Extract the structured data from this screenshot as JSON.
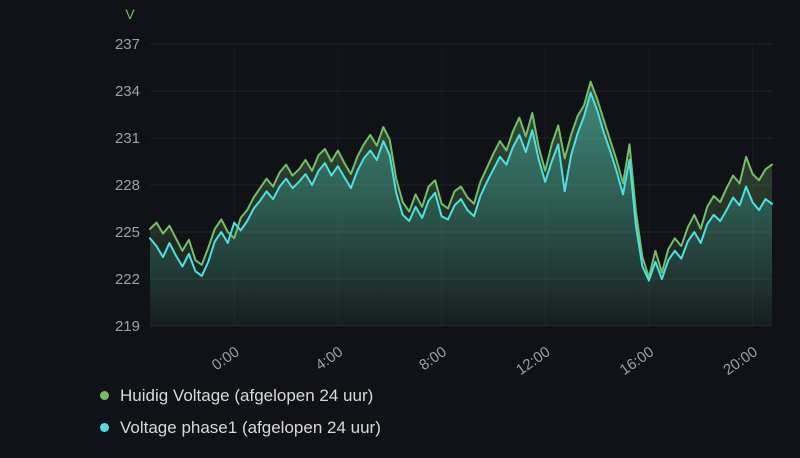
{
  "colors": {
    "background": "#111217",
    "grid": "rgba(255,255,255,0.07)",
    "tick_text": "#9aa0a6",
    "legend_text": "#d8d9da"
  },
  "chart_data": {
    "type": "area",
    "title": "",
    "ylabel": "V",
    "unit_color": "#73bf69",
    "grid": true,
    "legend_position": "bottom-left",
    "ylim": [
      219,
      237
    ],
    "yticks": [
      219,
      222,
      225,
      228,
      231,
      234,
      237
    ],
    "x_span_hours": 24,
    "x_step_hours": 0.25,
    "x_ticks": [
      {
        "hour_offset": 3.25,
        "label": "0:00"
      },
      {
        "hour_offset": 7.25,
        "label": "4:00"
      },
      {
        "hour_offset": 11.25,
        "label": "8:00"
      },
      {
        "hour_offset": 15.25,
        "label": "12:00"
      },
      {
        "hour_offset": 19.25,
        "label": "16:00"
      },
      {
        "hour_offset": 23.25,
        "label": "20:00"
      }
    ],
    "series": [
      {
        "name": "Huidig Voltage (afgelopen 24 uur)",
        "color": "#73bf69",
        "values": [
          225.2,
          225.6,
          224.9,
          225.4,
          224.6,
          223.8,
          224.5,
          223.2,
          222.9,
          224.0,
          225.2,
          225.8,
          225.0,
          224.6,
          225.9,
          226.4,
          227.2,
          227.8,
          228.4,
          227.9,
          228.8,
          229.3,
          228.6,
          229.0,
          229.6,
          228.9,
          229.9,
          230.3,
          229.5,
          230.2,
          229.4,
          228.7,
          229.8,
          230.6,
          231.2,
          230.5,
          231.7,
          230.9,
          228.4,
          226.9,
          226.3,
          227.4,
          226.6,
          227.9,
          228.3,
          226.8,
          226.5,
          227.6,
          227.9,
          227.2,
          226.8,
          228.2,
          229.1,
          230.0,
          230.8,
          230.2,
          231.4,
          232.3,
          231.1,
          232.6,
          230.4,
          228.9,
          230.6,
          231.8,
          229.7,
          231.2,
          232.4,
          233.1,
          234.6,
          233.5,
          232.2,
          230.9,
          229.6,
          228.1,
          230.6,
          226.3,
          223.4,
          222.1,
          223.8,
          222.4,
          223.9,
          224.6,
          224.1,
          225.3,
          226.1,
          225.2,
          226.6,
          227.3,
          226.9,
          227.8,
          228.6,
          228.1,
          229.8,
          228.7,
          228.3,
          229.0,
          229.3
        ]
      },
      {
        "name": "Voltage phase1 (afgelopen 24 uur)",
        "color": "#4de0e3",
        "values": [
          224.6,
          224.1,
          223.4,
          224.3,
          223.5,
          222.8,
          223.6,
          222.5,
          222.2,
          223.1,
          224.4,
          225.0,
          224.3,
          225.6,
          225.1,
          225.7,
          226.5,
          227.0,
          227.6,
          227.1,
          227.9,
          228.4,
          227.8,
          228.2,
          228.7,
          228.0,
          228.9,
          229.4,
          228.6,
          229.2,
          228.5,
          227.8,
          228.9,
          229.7,
          230.2,
          229.6,
          230.8,
          229.9,
          227.5,
          226.1,
          225.7,
          226.6,
          225.9,
          227.0,
          227.5,
          226.0,
          225.8,
          226.7,
          227.1,
          226.4,
          226.0,
          227.3,
          228.2,
          229.0,
          229.8,
          229.3,
          230.4,
          231.2,
          230.1,
          231.5,
          229.6,
          228.2,
          229.5,
          230.6,
          227.6,
          229.9,
          231.3,
          232.4,
          233.9,
          232.8,
          231.4,
          230.2,
          228.9,
          227.4,
          229.6,
          225.4,
          222.8,
          221.9,
          223.1,
          222.0,
          223.2,
          223.8,
          223.3,
          224.4,
          225.0,
          224.3,
          225.5,
          226.1,
          225.7,
          226.4,
          227.2,
          226.7,
          227.9,
          226.9,
          226.4,
          227.1,
          226.8
        ]
      }
    ]
  }
}
